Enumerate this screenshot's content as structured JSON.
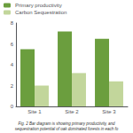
{
  "chart_data": {
    "type": "bar",
    "categories": [
      "Site 1",
      "Site 2",
      "Site 3"
    ],
    "series": [
      {
        "name": "Primary productivity",
        "color": "#6b9e3e",
        "values": [
          5.5,
          7.2,
          6.5
        ]
      },
      {
        "name": "Carbon Sequestration",
        "color": "#c2d69b",
        "values": [
          2.0,
          3.2,
          2.4
        ]
      }
    ],
    "ylim": [
      0,
      8
    ],
    "yticks": [
      0,
      2,
      4,
      6,
      8
    ],
    "grid": false,
    "legend": "upper left",
    "annotations": [
      "Fig. 2 Bar diagram is showing primary productivity, and",
      "sequestration potential of oak dominated forests in each fo"
    ]
  }
}
